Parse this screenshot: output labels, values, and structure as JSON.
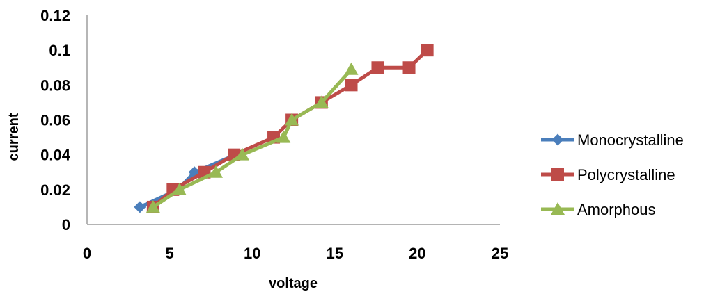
{
  "chart_data": {
    "type": "line",
    "title": "",
    "xlabel": "voltage",
    "ylabel": "current",
    "xlim": [
      0,
      25
    ],
    "ylim": [
      0,
      0.12
    ],
    "xticks": [
      "0",
      "5",
      "10",
      "15",
      "20",
      "25"
    ],
    "yticks": [
      "0",
      "0.02",
      "0.04",
      "0.06",
      "0.08",
      "0.1",
      "0.12"
    ],
    "grid": false,
    "legend_position": "right",
    "series": [
      {
        "name": "Monocrystalline",
        "color": "#4a7ebb",
        "marker": "diamond",
        "x": [
          3.2,
          5.5,
          6.5,
          9.0
        ],
        "y": [
          0.01,
          0.02,
          0.03,
          0.04
        ]
      },
      {
        "name": "Polycrystalline",
        "color": "#be4b48",
        "marker": "square",
        "x": [
          4.0,
          5.2,
          7.1,
          8.9,
          11.3,
          12.4,
          14.2,
          16.0,
          17.6,
          19.5,
          20.6
        ],
        "y": [
          0.01,
          0.02,
          0.03,
          0.04,
          0.05,
          0.06,
          0.07,
          0.08,
          0.09,
          0.09,
          0.1
        ]
      },
      {
        "name": "Amorphous",
        "color": "#98b954",
        "marker": "triangle",
        "x": [
          4.0,
          5.6,
          7.8,
          9.4,
          11.9,
          12.4,
          14.2,
          16.0
        ],
        "y": [
          0.01,
          0.02,
          0.03,
          0.04,
          0.05,
          0.06,
          0.07,
          0.089
        ]
      }
    ]
  }
}
